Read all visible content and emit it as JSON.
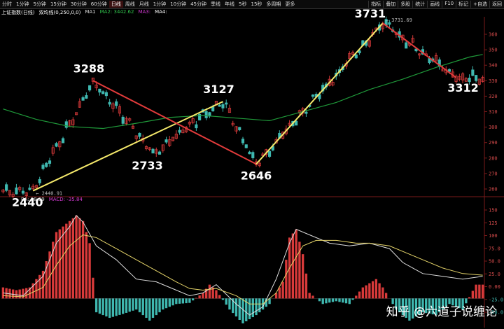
{
  "toolbar": {
    "left": [
      "分时",
      "1分钟",
      "5分钟",
      "15分钟",
      "30分钟",
      "60分钟",
      "日线",
      "周线",
      "月线",
      "1分钟",
      "10分钟",
      "45分钟",
      "季线",
      "年线",
      "5秒",
      "15秒",
      "多周期",
      "更多"
    ],
    "active_index": 6,
    "right": [
      "指标",
      "叠加",
      "多股",
      "统计",
      "画线",
      "F10",
      "标记",
      "+自选",
      "返回"
    ]
  },
  "infobar": {
    "title": "上证指数(日线)",
    "indicator": "双均线(0,250,0,0)",
    "ma1": "MA1",
    "ma2": "MA2: 3442.62",
    "ma3": "MA3:",
    "ma4": "MA4:"
  },
  "macdbar": {
    "ea": "EA: 38.59",
    "macd": "MACD: -35.84"
  },
  "colors": {
    "up": "#d93a3a",
    "down": "#3fb8b0",
    "ma_line": "#1f9a3a",
    "trend_up": "#f5e96b",
    "trend_down": "#e23b3b",
    "dif": "#dddddd",
    "dea": "#e6d56a"
  },
  "chart_data": [
    {
      "type": "candlestick",
      "ylim": [
        2400,
        3780
      ],
      "axis_labels": [
        "360",
        "350",
        "340",
        "330",
        "320",
        "310",
        "300",
        "290",
        "280",
        "270",
        "260"
      ],
      "extreme_labels": [
        {
          "x": 114,
          "price": 3731.69,
          "text": "3731.69"
        },
        {
          "x": 9,
          "price": 2440.91,
          "text": "2440.91"
        }
      ],
      "trend_points": [
        {
          "x": 9,
          "price": 2440
        },
        {
          "x": 27,
          "price": 3288
        },
        {
          "x": 45,
          "price": 2733
        },
        {
          "x": 66,
          "price": 3127
        },
        {
          "x": 76,
          "price": 2646
        },
        {
          "x": 114,
          "price": 3731
        },
        {
          "x": 136,
          "price": 3312
        }
      ],
      "annotations": [
        {
          "text": "3288",
          "i": 1
        },
        {
          "text": "2733",
          "i": 2
        },
        {
          "text": "3127",
          "i": 3
        },
        {
          "text": "2646",
          "i": 4
        },
        {
          "text": "3731",
          "i": 5
        },
        {
          "text": "3312",
          "i": 6
        },
        {
          "text": "2440",
          "i": 0
        }
      ],
      "trend_lines": [
        {
          "from": 0,
          "to": 3,
          "color": "trend_up"
        },
        {
          "from": 1,
          "to": 4,
          "color": "trend_down"
        },
        {
          "from": 4,
          "to": 5,
          "color": "trend_up"
        },
        {
          "from": 5,
          "to": 6,
          "color": "trend_down"
        }
      ],
      "ma_points": [
        [
          0,
          3070
        ],
        [
          10,
          2990
        ],
        [
          20,
          2935
        ],
        [
          30,
          2920
        ],
        [
          40,
          2960
        ],
        [
          50,
          3005
        ],
        [
          60,
          3020
        ],
        [
          70,
          3000
        ],
        [
          80,
          2980
        ],
        [
          90,
          3050
        ],
        [
          100,
          3120
        ],
        [
          110,
          3220
        ],
        [
          120,
          3300
        ],
        [
          130,
          3390
        ],
        [
          140,
          3470
        ],
        [
          144,
          3490
        ]
      ]
    },
    {
      "type": "macd",
      "ylim": [
        -40,
        170
      ],
      "axis_labels": [
        "150",
        "125",
        "100",
        "75.0",
        "50.0",
        "25.0",
        "0.00",
        "-25.0",
        "-50.0"
      ],
      "histogram": [
        [
          0,
          20
        ],
        [
          4,
          15
        ],
        [
          8,
          20
        ],
        [
          12,
          50
        ],
        [
          16,
          120
        ],
        [
          20,
          140
        ],
        [
          22,
          150
        ],
        [
          24,
          140
        ],
        [
          26,
          100
        ],
        [
          28,
          -25
        ],
        [
          32,
          -35
        ],
        [
          36,
          -28
        ],
        [
          40,
          -20
        ],
        [
          44,
          -40
        ],
        [
          48,
          -20
        ],
        [
          52,
          -10
        ],
        [
          56,
          -8
        ],
        [
          60,
          10
        ],
        [
          62,
          25
        ],
        [
          64,
          15
        ],
        [
          68,
          -20
        ],
        [
          72,
          -45
        ],
        [
          76,
          -30
        ],
        [
          80,
          -10
        ],
        [
          84,
          30
        ],
        [
          86,
          110
        ],
        [
          88,
          125
        ],
        [
          90,
          80
        ],
        [
          92,
          10
        ],
        [
          96,
          -10
        ],
        [
          100,
          -5
        ],
        [
          104,
          -10
        ],
        [
          108,
          20
        ],
        [
          112,
          35
        ],
        [
          114,
          20
        ],
        [
          118,
          -20
        ],
        [
          122,
          -40
        ],
        [
          126,
          -25
        ],
        [
          130,
          -30
        ],
        [
          134,
          -10
        ],
        [
          138,
          -20
        ],
        [
          142,
          25
        ]
      ],
      "dif": [
        [
          0,
          10
        ],
        [
          6,
          5
        ],
        [
          12,
          40
        ],
        [
          16,
          100
        ],
        [
          20,
          130
        ],
        [
          22,
          150
        ],
        [
          24,
          138
        ],
        [
          28,
          95
        ],
        [
          34,
          70
        ],
        [
          40,
          35
        ],
        [
          46,
          30
        ],
        [
          52,
          15
        ],
        [
          56,
          5
        ],
        [
          60,
          10
        ],
        [
          64,
          25
        ],
        [
          70,
          -10
        ],
        [
          74,
          -30
        ],
        [
          78,
          -15
        ],
        [
          82,
          35
        ],
        [
          86,
          100
        ],
        [
          88,
          125
        ],
        [
          92,
          115
        ],
        [
          98,
          100
        ],
        [
          104,
          95
        ],
        [
          110,
          100
        ],
        [
          116,
          90
        ],
        [
          120,
          65
        ],
        [
          126,
          45
        ],
        [
          132,
          40
        ],
        [
          138,
          35
        ],
        [
          144,
          40
        ]
      ],
      "dea": [
        [
          0,
          5
        ],
        [
          6,
          3
        ],
        [
          12,
          20
        ],
        [
          16,
          60
        ],
        [
          20,
          95
        ],
        [
          24,
          115
        ],
        [
          28,
          110
        ],
        [
          34,
          90
        ],
        [
          40,
          70
        ],
        [
          46,
          50
        ],
        [
          52,
          30
        ],
        [
          56,
          18
        ],
        [
          60,
          15
        ],
        [
          64,
          18
        ],
        [
          70,
          5
        ],
        [
          74,
          -10
        ],
        [
          78,
          -10
        ],
        [
          82,
          10
        ],
        [
          86,
          55
        ],
        [
          90,
          95
        ],
        [
          94,
          105
        ],
        [
          100,
          105
        ],
        [
          106,
          100
        ],
        [
          110,
          100
        ],
        [
          116,
          95
        ],
        [
          120,
          85
        ],
        [
          126,
          70
        ],
        [
          132,
          55
        ],
        [
          138,
          45
        ],
        [
          144,
          42
        ]
      ]
    }
  ],
  "watermark": "知乎 @六道子说缠论"
}
